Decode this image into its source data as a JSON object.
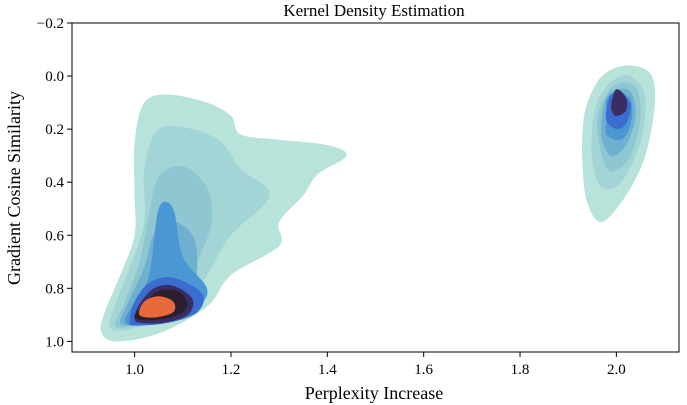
{
  "chart_data": {
    "type": "kde-contour",
    "title": "Kernel Density Estimation",
    "xlabel": "Perplexity Increase",
    "ylabel": "Gradient Cosine Similarity",
    "xlim": [
      0.87,
      2.13
    ],
    "ylim": [
      1.04,
      -0.2
    ],
    "y_inverted": true,
    "xticks": [
      1.0,
      1.2,
      1.4,
      1.6,
      1.8,
      2.0
    ],
    "xtick_labels": [
      "1.0",
      "1.2",
      "1.4",
      "1.6",
      "1.8",
      "2.0"
    ],
    "yticks": [
      -0.2,
      0.0,
      0.2,
      0.4,
      0.6,
      0.8,
      1.0
    ],
    "ytick_labels": [
      "−0.2",
      "0.0",
      "0.2",
      "0.4",
      "0.6",
      "0.8",
      "1.0"
    ],
    "grid": false,
    "levels_colors": [
      "#b7e3da",
      "#a3d5d6",
      "#8ec6d1",
      "#6fb0d0",
      "#4a97d4",
      "#3b6cd0",
      "#3a2d63",
      "#2b1e2e",
      "#e8693b"
    ],
    "clusters": [
      {
        "name": "main cluster",
        "levels": [
          [
            [
              0.93,
              0.96
            ],
            [
              0.94,
              0.88
            ],
            [
              0.97,
              0.75
            ],
            [
              1.0,
              0.6
            ],
            [
              1.0,
              0.45
            ],
            [
              1.0,
              0.25
            ],
            [
              1.02,
              0.1
            ],
            [
              1.07,
              0.07
            ],
            [
              1.15,
              0.1
            ],
            [
              1.2,
              0.15
            ],
            [
              1.22,
              0.22
            ],
            [
              1.3,
              0.24
            ],
            [
              1.4,
              0.26
            ],
            [
              1.44,
              0.3
            ],
            [
              1.38,
              0.37
            ],
            [
              1.35,
              0.45
            ],
            [
              1.3,
              0.55
            ],
            [
              1.3,
              0.64
            ],
            [
              1.2,
              0.75
            ],
            [
              1.15,
              0.87
            ],
            [
              1.05,
              0.97
            ],
            [
              0.96,
              1.0
            ]
          ],
          [
            [
              0.95,
              0.95
            ],
            [
              0.96,
              0.86
            ],
            [
              0.99,
              0.72
            ],
            [
              1.02,
              0.55
            ],
            [
              1.02,
              0.35
            ],
            [
              1.05,
              0.2
            ],
            [
              1.12,
              0.2
            ],
            [
              1.18,
              0.25
            ],
            [
              1.22,
              0.35
            ],
            [
              1.28,
              0.45
            ],
            [
              1.2,
              0.6
            ],
            [
              1.15,
              0.75
            ],
            [
              1.1,
              0.88
            ],
            [
              1.0,
              0.95
            ]
          ],
          [
            [
              0.96,
              0.94
            ],
            [
              0.98,
              0.85
            ],
            [
              1.01,
              0.7
            ],
            [
              1.03,
              0.52
            ],
            [
              1.05,
              0.38
            ],
            [
              1.1,
              0.34
            ],
            [
              1.15,
              0.42
            ],
            [
              1.16,
              0.55
            ],
            [
              1.13,
              0.7
            ],
            [
              1.1,
              0.82
            ],
            [
              1.05,
              0.9
            ],
            [
              1.0,
              0.94
            ]
          ],
          [
            [
              0.97,
              0.93
            ],
            [
              0.99,
              0.84
            ],
            [
              1.02,
              0.72
            ],
            [
              1.04,
              0.6
            ],
            [
              1.08,
              0.55
            ],
            [
              1.12,
              0.6
            ],
            [
              1.13,
              0.7
            ],
            [
              1.12,
              0.8
            ],
            [
              1.07,
              0.88
            ],
            [
              1.0,
              0.93
            ]
          ],
          [
            [
              0.98,
              0.92
            ],
            [
              1.0,
              0.85
            ],
            [
              1.03,
              0.75
            ],
            [
              1.05,
              0.5
            ],
            [
              1.08,
              0.5
            ],
            [
              1.1,
              0.68
            ],
            [
              1.15,
              0.8
            ],
            [
              1.13,
              0.87
            ],
            [
              1.07,
              0.92
            ],
            [
              1.0,
              0.94
            ]
          ],
          [
            [
              0.99,
              0.92
            ],
            [
              1.0,
              0.85
            ],
            [
              1.03,
              0.78
            ],
            [
              1.08,
              0.76
            ],
            [
              1.14,
              0.82
            ],
            [
              1.13,
              0.89
            ],
            [
              1.07,
              0.93
            ],
            [
              1.0,
              0.94
            ]
          ],
          [
            [
              1.0,
              0.91
            ],
            [
              1.01,
              0.86
            ],
            [
              1.04,
              0.8
            ],
            [
              1.08,
              0.79
            ],
            [
              1.12,
              0.84
            ],
            [
              1.11,
              0.9
            ],
            [
              1.06,
              0.93
            ],
            [
              1.01,
              0.93
            ]
          ],
          [
            [
              1.0,
              0.91
            ],
            [
              1.02,
              0.86
            ],
            [
              1.05,
              0.81
            ],
            [
              1.09,
              0.81
            ],
            [
              1.11,
              0.86
            ],
            [
              1.09,
              0.9
            ],
            [
              1.04,
              0.92
            ]
          ],
          [
            [
              1.01,
              0.9
            ],
            [
              1.02,
              0.85
            ],
            [
              1.05,
              0.83
            ],
            [
              1.08,
              0.85
            ],
            [
              1.08,
              0.89
            ],
            [
              1.04,
              0.91
            ]
          ]
        ]
      },
      {
        "name": "secondary cluster",
        "levels": [
          [
            [
              1.93,
              0.2
            ],
            [
              1.94,
              0.1
            ],
            [
              1.97,
              0.0
            ],
            [
              2.02,
              -0.04
            ],
            [
              2.07,
              -0.01
            ],
            [
              2.08,
              0.1
            ],
            [
              2.06,
              0.3
            ],
            [
              2.02,
              0.45
            ],
            [
              1.97,
              0.55
            ],
            [
              1.94,
              0.48
            ],
            [
              1.93,
              0.35
            ]
          ],
          [
            [
              1.95,
              0.2
            ],
            [
              1.96,
              0.1
            ],
            [
              1.99,
              0.02
            ],
            [
              2.03,
              0.0
            ],
            [
              2.06,
              0.08
            ],
            [
              2.05,
              0.25
            ],
            [
              2.01,
              0.4
            ],
            [
              1.97,
              0.42
            ],
            [
              1.95,
              0.32
            ]
          ],
          [
            [
              1.96,
              0.18
            ],
            [
              1.97,
              0.1
            ],
            [
              2.0,
              0.03
            ],
            [
              2.04,
              0.04
            ],
            [
              2.05,
              0.15
            ],
            [
              2.03,
              0.3
            ],
            [
              1.99,
              0.36
            ],
            [
              1.97,
              0.3
            ]
          ],
          [
            [
              1.97,
              0.15
            ],
            [
              1.98,
              0.08
            ],
            [
              2.0,
              0.05
            ],
            [
              2.03,
              0.06
            ],
            [
              2.04,
              0.15
            ],
            [
              2.02,
              0.26
            ],
            [
              1.99,
              0.3
            ],
            [
              1.97,
              0.24
            ]
          ],
          [
            [
              1.98,
              0.15
            ],
            [
              1.98,
              0.09
            ],
            [
              2.0,
              0.06
            ],
            [
              2.03,
              0.09
            ],
            [
              2.03,
              0.18
            ],
            [
              2.01,
              0.24
            ],
            [
              1.98,
              0.22
            ]
          ],
          [
            [
              1.98,
              0.12
            ],
            [
              1.99,
              0.07
            ],
            [
              2.01,
              0.07
            ],
            [
              2.03,
              0.11
            ],
            [
              2.02,
              0.18
            ],
            [
              2.0,
              0.2
            ],
            [
              1.98,
              0.17
            ]
          ],
          [
            [
              1.99,
              0.1
            ],
            [
              2.0,
              0.05
            ],
            [
              2.02,
              0.08
            ],
            [
              2.02,
              0.13
            ],
            [
              2.0,
              0.15
            ],
            [
              1.99,
              0.13
            ]
          ]
        ]
      }
    ]
  }
}
